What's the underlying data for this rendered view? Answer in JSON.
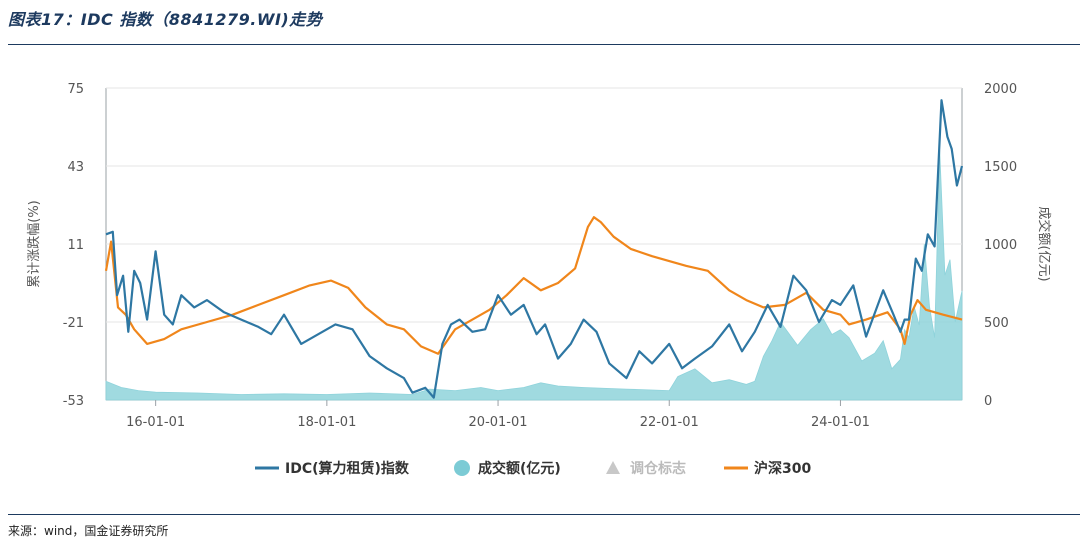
{
  "header": {
    "title": "图表17：IDC 指数（8841279.WI)走势"
  },
  "footer": {
    "source": "来源：wind，国金证券研究所"
  },
  "colors": {
    "idc": "#2e77a3",
    "turnover": "#8fd3db",
    "turnover_legend": "#7ccbd5",
    "marker": "#c8c8c8",
    "hs300": "#f0861b",
    "grid": "#e6e6e6",
    "axis": "#9aa0a6"
  },
  "chart_data": {
    "type": "line",
    "x_ticks": [
      "16-01-01",
      "18-01-01",
      "20-01-01",
      "22-01-01",
      "24-01-01"
    ],
    "x_range": [
      2015.42,
      2025.42
    ],
    "x_tick_values": [
      2016.0,
      2018.0,
      2020.0,
      2022.0,
      2024.0
    ],
    "y_left": {
      "label": "累计涨跌幅(%)",
      "ticks": [
        "75",
        "43",
        "11",
        "-21",
        "-53"
      ],
      "tick_values": [
        75,
        43,
        11,
        -21,
        -53
      ],
      "range": [
        -53,
        75
      ]
    },
    "y_right": {
      "label": "成交额(亿元)",
      "ticks": [
        "2000",
        "1500",
        "1000",
        "500",
        "0"
      ],
      "tick_values": [
        2000,
        1500,
        1000,
        500,
        0
      ],
      "range": [
        0,
        2000
      ]
    },
    "legend": [
      {
        "name": "IDC(算力租赁)指数",
        "marker": "line"
      },
      {
        "name": "成交额(亿元)",
        "marker": "circle"
      },
      {
        "name": "调仓标志",
        "marker": "triangle"
      },
      {
        "name": "沪深300",
        "marker": "line"
      }
    ],
    "series": [
      {
        "name": "IDC(算力租赁)指数",
        "axis": "left",
        "x": [
          2015.42,
          2015.5,
          2015.55,
          2015.62,
          2015.68,
          2015.75,
          2015.82,
          2015.9,
          2016.0,
          2016.1,
          2016.2,
          2016.3,
          2016.45,
          2016.6,
          2016.8,
          2017.0,
          2017.2,
          2017.35,
          2017.5,
          2017.7,
          2017.9,
          2018.1,
          2018.3,
          2018.5,
          2018.7,
          2018.9,
          2019.0,
          2019.15,
          2019.25,
          2019.35,
          2019.45,
          2019.55,
          2019.7,
          2019.85,
          2020.0,
          2020.15,
          2020.3,
          2020.45,
          2020.55,
          2020.7,
          2020.85,
          2021.0,
          2021.15,
          2021.3,
          2021.5,
          2021.65,
          2021.8,
          2022.0,
          2022.15,
          2022.3,
          2022.5,
          2022.7,
          2022.85,
          2023.0,
          2023.15,
          2023.3,
          2023.45,
          2023.6,
          2023.75,
          2023.9,
          2024.0,
          2024.15,
          2024.3,
          2024.5,
          2024.62,
          2024.7,
          2024.75,
          2024.8,
          2024.88,
          2024.95,
          2025.02,
          2025.1,
          2025.18,
          2025.25,
          2025.3,
          2025.36,
          2025.42
        ],
        "values": [
          15,
          16,
          -10,
          -2,
          -25,
          0,
          -5,
          -20,
          8,
          -18,
          -22,
          -10,
          -15,
          -12,
          -17,
          -20,
          -23,
          -26,
          -18,
          -30,
          -26,
          -22,
          -24,
          -35,
          -40,
          -44,
          -50,
          -48,
          -52,
          -30,
          -22,
          -20,
          -25,
          -24,
          -10,
          -18,
          -14,
          -26,
          -22,
          -36,
          -30,
          -20,
          -25,
          -38,
          -44,
          -33,
          -38,
          -30,
          -40,
          -36,
          -31,
          -22,
          -33,
          -25,
          -14,
          -23,
          -2,
          -8,
          -21,
          -12,
          -14,
          -6,
          -27,
          -8,
          -18,
          -25,
          -20,
          -20,
          5,
          0,
          15,
          10,
          70,
          55,
          50,
          35,
          43
        ]
      },
      {
        "name": "沪深300",
        "axis": "left",
        "x": [
          2015.42,
          2015.48,
          2015.56,
          2015.65,
          2015.75,
          2015.9,
          2016.1,
          2016.3,
          2016.6,
          2016.9,
          2017.2,
          2017.5,
          2017.8,
          2018.05,
          2018.25,
          2018.45,
          2018.7,
          2018.9,
          2019.1,
          2019.3,
          2019.5,
          2019.7,
          2019.9,
          2020.1,
          2020.3,
          2020.5,
          2020.7,
          2020.9,
          2021.05,
          2021.12,
          2021.2,
          2021.35,
          2021.55,
          2021.8,
          2022.0,
          2022.2,
          2022.45,
          2022.7,
          2022.9,
          2023.1,
          2023.35,
          2023.6,
          2023.8,
          2024.0,
          2024.1,
          2024.3,
          2024.55,
          2024.7,
          2024.75,
          2024.82,
          2024.9,
          2025.0,
          2025.2,
          2025.42
        ],
        "values": [
          0,
          12,
          -15,
          -18,
          -24,
          -30,
          -28,
          -24,
          -21,
          -18,
          -14,
          -10,
          -6,
          -4,
          -7,
          -15,
          -22,
          -24,
          -31,
          -34,
          -24,
          -20,
          -16,
          -10,
          -3,
          -8,
          -5,
          1,
          18,
          22,
          20,
          14,
          9,
          6,
          4,
          2,
          0,
          -8,
          -12,
          -15,
          -14,
          -9,
          -16,
          -18,
          -22,
          -20,
          -17,
          -24,
          -30,
          -18,
          -12,
          -16,
          -18,
          -20
        ]
      },
      {
        "name": "成交额(亿元)",
        "axis": "right",
        "type": "area",
        "x": [
          2015.42,
          2015.6,
          2015.8,
          2016.0,
          2016.5,
          2017.0,
          2017.5,
          2018.0,
          2018.5,
          2019.0,
          2019.2,
          2019.5,
          2019.8,
          2020.0,
          2020.3,
          2020.5,
          2020.7,
          2021.0,
          2021.5,
          2022.0,
          2022.1,
          2022.3,
          2022.5,
          2022.7,
          2022.9,
          2023.0,
          2023.1,
          2023.2,
          2023.3,
          2023.5,
          2023.65,
          2023.8,
          2023.9,
          2024.0,
          2024.1,
          2024.25,
          2024.4,
          2024.5,
          2024.6,
          2024.7,
          2024.75,
          2024.8,
          2024.86,
          2024.92,
          2024.98,
          2025.04,
          2025.1,
          2025.16,
          2025.22,
          2025.28,
          2025.34,
          2025.42
        ],
        "values": [
          120,
          80,
          60,
          50,
          45,
          35,
          40,
          35,
          45,
          35,
          70,
          60,
          80,
          60,
          80,
          110,
          90,
          80,
          70,
          60,
          150,
          200,
          110,
          130,
          100,
          120,
          280,
          380,
          500,
          350,
          450,
          520,
          420,
          450,
          400,
          250,
          300,
          380,
          200,
          260,
          450,
          400,
          600,
          480,
          1000,
          600,
          400,
          1600,
          800,
          900,
          500,
          700
        ]
      }
    ]
  }
}
